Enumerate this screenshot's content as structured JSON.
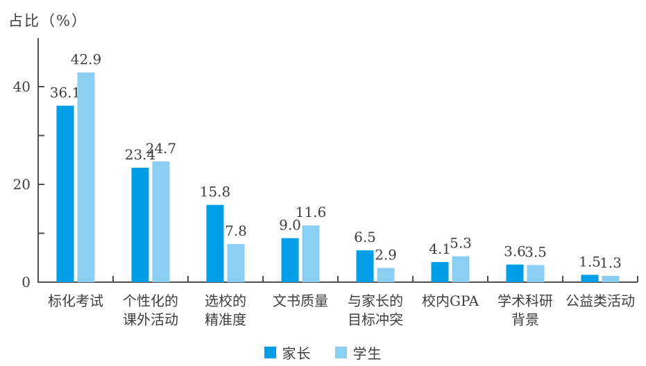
{
  "chart_data": {
    "type": "bar",
    "title": "",
    "ylabel": "占比（%）",
    "xlabel": "",
    "categories": [
      "标化考试",
      "个性化的\n课外活动",
      "选校的\n精准度",
      "文书质量",
      "与家长的\n目标冲突",
      "校内GPA",
      "学术科研\n背景",
      "公益类活动"
    ],
    "series": [
      {
        "name": "家长",
        "color": "#009EE7",
        "values": [
          36.1,
          23.4,
          15.8,
          9.0,
          6.5,
          4.1,
          3.6,
          1.5
        ]
      },
      {
        "name": "学生",
        "color": "#8ACEF2",
        "values": [
          42.9,
          24.7,
          7.8,
          11.6,
          2.9,
          5.3,
          3.5,
          1.3
        ]
      }
    ],
    "ylim": [
      0,
      45
    ],
    "yticks_labeled": [
      0,
      20,
      40
    ],
    "yticks_minor": [
      10,
      30
    ],
    "grid": false,
    "legend_position": "bottom-center",
    "value_label_decimals": 1
  },
  "style_colors": {
    "text": "#3d3d3d",
    "axis": "#4f4f4f",
    "parent_bar": "#009EE7",
    "student_bar": "#8ACEF2"
  }
}
